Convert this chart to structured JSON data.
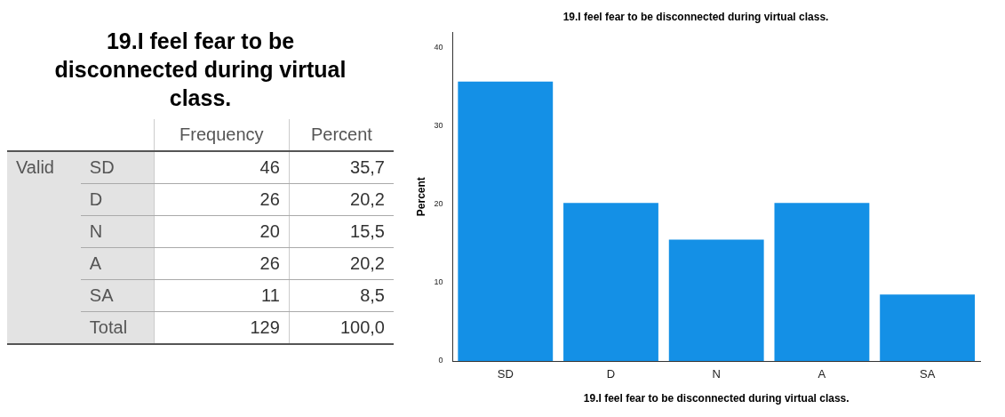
{
  "chart_data": [
    {
      "type": "other",
      "title": "19.I feel fear to be disconnected during virtual class.",
      "categories": [
        "SD",
        "D",
        "N",
        "A",
        "SA",
        "Total"
      ],
      "annotations": [
        "Valid"
      ],
      "data_labels": true,
      "series": [
        {
          "name": "Frequency",
          "values": [
            46,
            26,
            20,
            26,
            11,
            129
          ]
        },
        {
          "name": "Percent",
          "values": [
            35.7,
            20.2,
            15.5,
            20.2,
            8.5,
            100.0
          ],
          "value_labels": [
            "35,7",
            "20,2",
            "15,5",
            "20,2",
            "8,5",
            "100,0"
          ]
        }
      ]
    },
    {
      "type": "bar",
      "title": "19.I feel fear to be disconnected during virtual class.",
      "xlabel": "19.I feel fear to be disconnected during virtual class.",
      "ylabel": "Percent",
      "categories": [
        "SD",
        "D",
        "N",
        "A",
        "SA"
      ],
      "values": [
        35.7,
        20.2,
        15.5,
        20.2,
        8.5
      ],
      "color": "#1490e6",
      "ylim": [
        0,
        42
      ],
      "yticks": [
        0,
        10,
        20,
        30,
        40
      ],
      "grid": false,
      "legend": false
    }
  ]
}
